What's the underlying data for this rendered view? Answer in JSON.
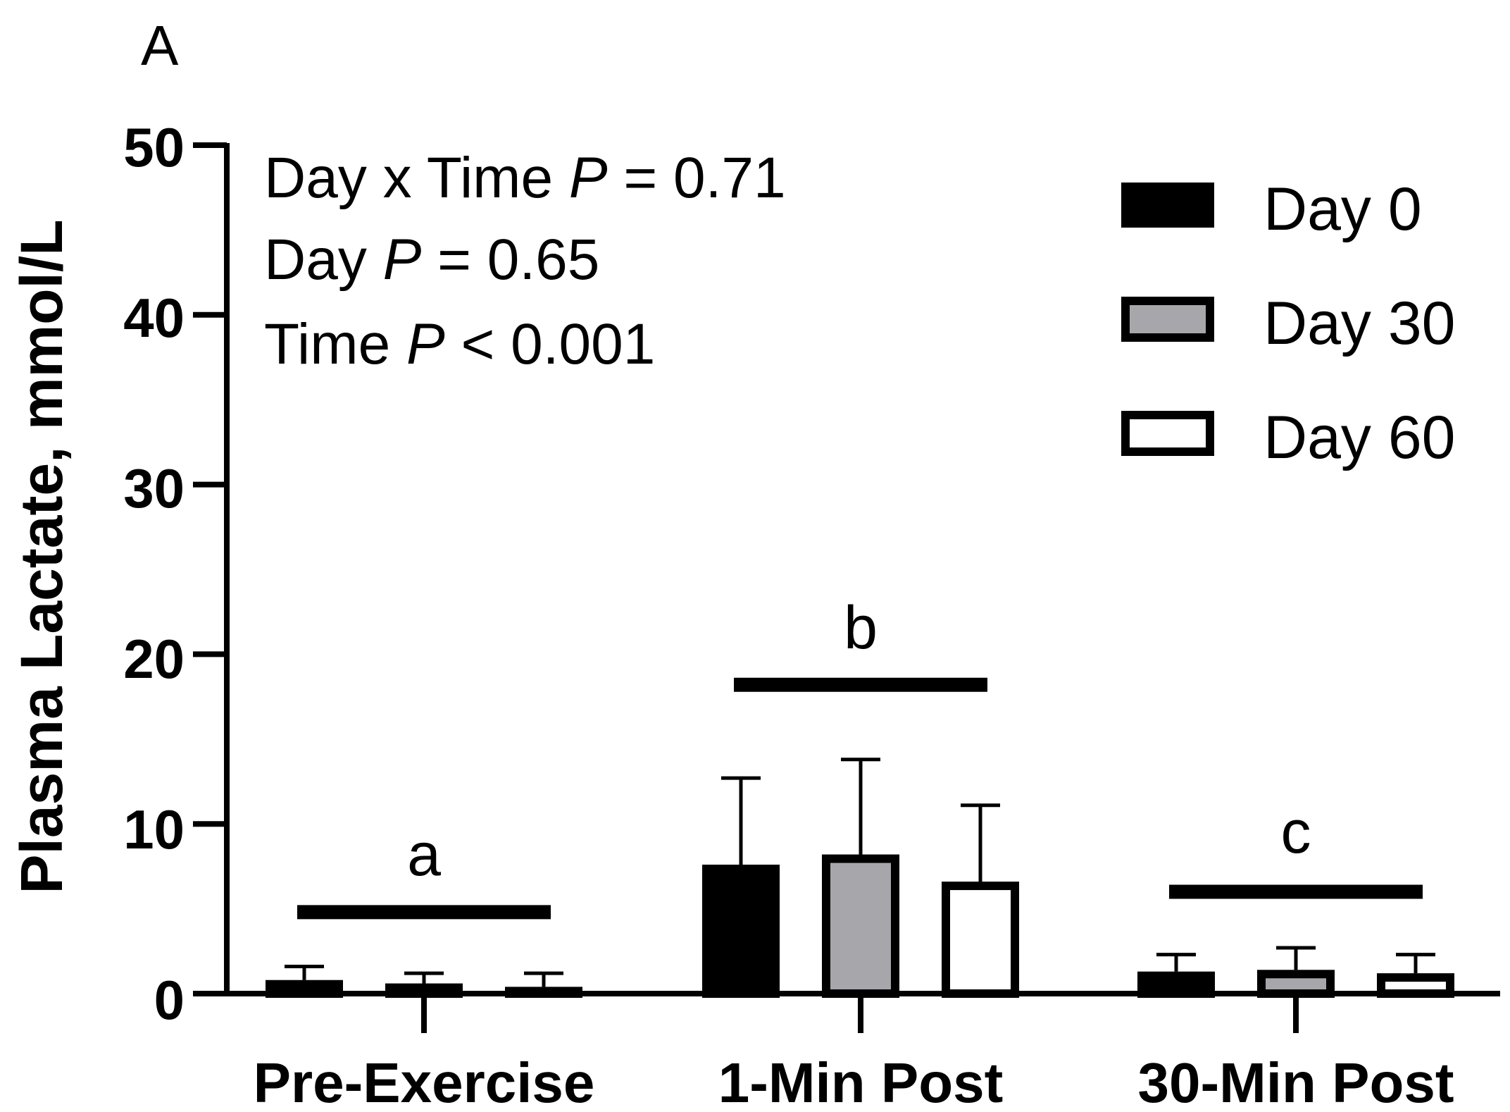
{
  "chart_data": {
    "type": "bar",
    "panel_label": "A",
    "ylabel": "Plasma Lactate, mmol/L",
    "xlabel": "",
    "ylim": [
      0,
      50
    ],
    "yticks": [
      "0",
      "10",
      "20",
      "30",
      "40",
      "50"
    ],
    "categories": [
      "Pre-Exercise",
      "1-Min Post",
      "30-Min Post"
    ],
    "series": [
      {
        "name": "Day 0",
        "fill": "#000000",
        "values": [
          0.8,
          7.6,
          1.3
        ],
        "errors": [
          0.8,
          5.1,
          1.0
        ]
      },
      {
        "name": "Day 30",
        "fill": "#a7a6ab",
        "values": [
          0.6,
          8.2,
          1.4
        ],
        "errors": [
          0.6,
          5.6,
          1.3
        ]
      },
      {
        "name": "Day 60",
        "fill": "#ffffff",
        "values": [
          0.4,
          6.6,
          1.2
        ],
        "errors": [
          0.8,
          4.5,
          1.1
        ]
      }
    ],
    "stats": {
      "interaction": {
        "prefix": "Day x  Time ",
        "p": "P",
        "suffix": " = 0.71"
      },
      "day": {
        "prefix": "Day ",
        "p": "P",
        "suffix": " = 0.65"
      },
      "time": {
        "prefix": "Time ",
        "p": "P",
        "suffix": " < 0.001"
      }
    },
    "significance": [
      {
        "category": "Pre-Exercise",
        "letter": "a",
        "line_y": 4.8
      },
      {
        "category": "1-Min Post",
        "letter": "b",
        "line_y": 18.2
      },
      {
        "category": "30-Min Post",
        "letter": "c",
        "line_y": 6.0
      }
    ],
    "legend_position": "top-right"
  }
}
